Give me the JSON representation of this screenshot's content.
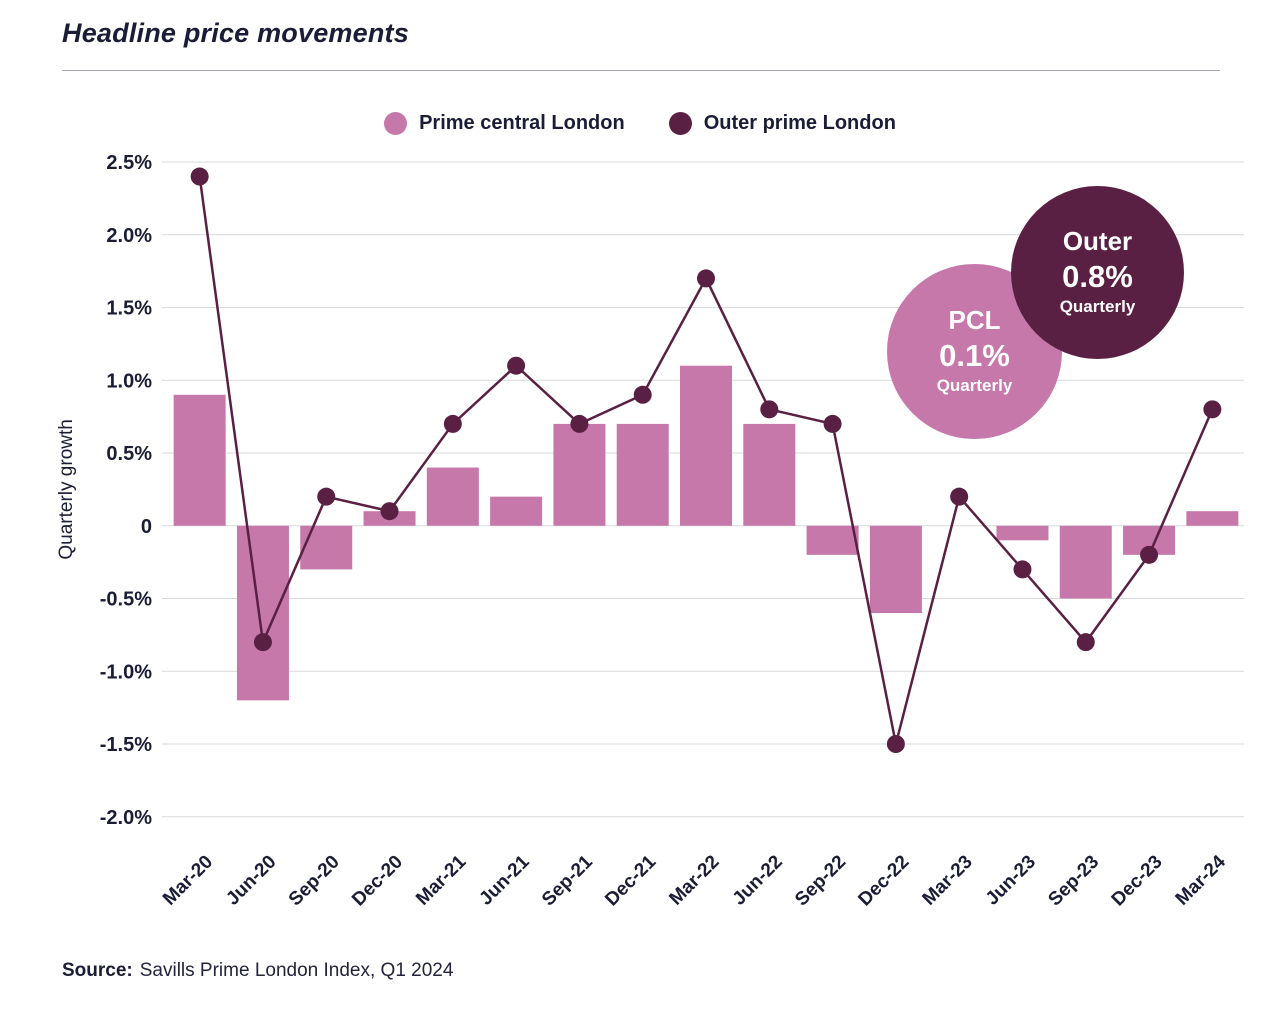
{
  "page": {
    "title": "Headline price movements",
    "source_label": "Source:",
    "source_text": "Savills Prime London Index, Q1 2024"
  },
  "colors": {
    "ink": "#1b1c35",
    "grid": "#d9d9de",
    "pcl": "#c678ab",
    "outer": "#5a2043"
  },
  "annotations": {
    "pcl": {
      "title": "PCL",
      "value": "0.1%",
      "sub": "Quarterly"
    },
    "outer": {
      "title": "Outer",
      "value": "0.8%",
      "sub": "Quarterly"
    }
  },
  "chart_data": {
    "type": "bar+line",
    "title": "Headline price movements",
    "ylabel": "Quarterly growth",
    "ylim": [
      -2.0,
      2.5
    ],
    "ytick_step": 0.5,
    "ytick_labels": [
      "2.5%",
      "2.0%",
      "1.5%",
      "1.0%",
      "0.5%",
      "0",
      "-0.5%",
      "-1.0%",
      "-1.5%",
      "-2.0%"
    ],
    "grid": true,
    "legend_position": "top",
    "categories": [
      "Mar-20",
      "Jun-20",
      "Sep-20",
      "Dec-20",
      "Mar-21",
      "Jun-21",
      "Sep-21",
      "Dec-21",
      "Mar-22",
      "Jun-22",
      "Sep-22",
      "Dec-22",
      "Mar-23",
      "Jun-23",
      "Sep-23",
      "Dec-23",
      "Mar-24"
    ],
    "series": [
      {
        "name": "Prime central London",
        "type": "bar",
        "color": "#c678ab",
        "values": [
          0.9,
          -1.2,
          -0.3,
          0.1,
          0.4,
          0.2,
          0.7,
          0.7,
          1.1,
          0.7,
          -0.2,
          -0.6,
          0.0,
          -0.1,
          -0.5,
          -0.2,
          0.1
        ]
      },
      {
        "name": "Outer prime London",
        "type": "line",
        "color": "#5a2043",
        "values": [
          2.4,
          -0.8,
          0.2,
          0.1,
          0.7,
          1.1,
          0.7,
          0.9,
          1.7,
          0.8,
          0.7,
          -1.5,
          0.2,
          -0.3,
          -0.8,
          -0.2,
          0.8
        ]
      }
    ]
  }
}
